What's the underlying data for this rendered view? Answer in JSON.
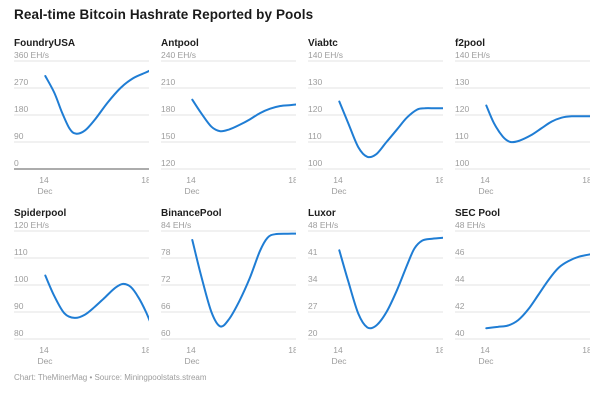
{
  "header": {
    "title": "Real-time Bitcoin Hashrate Reported by Pools"
  },
  "footer": {
    "credit": "Chart: TheMinerMag • Source: Miningpoolstats.stream"
  },
  "colors": {
    "line": "#1f7dd4",
    "grid": "#e3e3e3",
    "zero_axis": "#919191",
    "tick_label": "#9d9d9d",
    "title": "#1a1a1a",
    "subplot_title": "#1d1d1d"
  },
  "chart_data": {
    "type": "line",
    "title": "Real-time Bitcoin Hashrate Reported by Pools",
    "unit": "EH/s",
    "grid": "on",
    "legend": "none",
    "x_axis": {
      "xlim": [
        14,
        18.2
      ],
      "tick_days": [
        14,
        18
      ],
      "tick_labels": [
        "14",
        "18"
      ],
      "month_label": "Dec"
    },
    "charts": [
      {
        "name": "FoundryUSA",
        "unit_label": "360 EH/s",
        "ylim": [
          0,
          360
        ],
        "yticks": [
          270,
          180,
          90,
          0
        ],
        "zero_baseline": true,
        "points": [
          [
            14.05,
            310
          ],
          [
            14.4,
            255
          ],
          [
            14.7,
            190
          ],
          [
            15.0,
            135
          ],
          [
            15.25,
            118
          ],
          [
            15.6,
            128
          ],
          [
            16.0,
            165
          ],
          [
            16.5,
            222
          ],
          [
            17.0,
            270
          ],
          [
            17.5,
            303
          ],
          [
            18.0,
            322
          ],
          [
            18.2,
            330
          ]
        ]
      },
      {
        "name": "Antpool",
        "unit_label": "240 EH/s",
        "ylim": [
          120,
          240
        ],
        "yticks": [
          210,
          180,
          150,
          120
        ],
        "zero_baseline": false,
        "points": [
          [
            14.05,
            197
          ],
          [
            14.4,
            182
          ],
          [
            14.8,
            167
          ],
          [
            15.15,
            162
          ],
          [
            15.5,
            164
          ],
          [
            15.9,
            169
          ],
          [
            16.3,
            175
          ],
          [
            16.7,
            182
          ],
          [
            17.1,
            187
          ],
          [
            17.5,
            190
          ],
          [
            17.9,
            191
          ],
          [
            18.2,
            192
          ]
        ]
      },
      {
        "name": "Viabtc",
        "unit_label": "140 EH/s",
        "ylim": [
          100,
          140
        ],
        "yticks": [
          130,
          120,
          110,
          100
        ],
        "zero_baseline": false,
        "points": [
          [
            14.05,
            125
          ],
          [
            14.4,
            117
          ],
          [
            14.8,
            108
          ],
          [
            15.15,
            104.5
          ],
          [
            15.5,
            105.5
          ],
          [
            15.9,
            110
          ],
          [
            16.3,
            114.5
          ],
          [
            16.7,
            119
          ],
          [
            17.1,
            122
          ],
          [
            17.4,
            122.5
          ],
          [
            17.8,
            122.5
          ],
          [
            18.2,
            122.5
          ]
        ]
      },
      {
        "name": "f2pool",
        "unit_label": "140 EH/s",
        "ylim": [
          100,
          140
        ],
        "yticks": [
          130,
          120,
          110,
          100
        ],
        "zero_baseline": false,
        "points": [
          [
            14.05,
            123.5
          ],
          [
            14.35,
            117
          ],
          [
            14.7,
            112
          ],
          [
            15.0,
            110
          ],
          [
            15.35,
            110.5
          ],
          [
            15.8,
            112.5
          ],
          [
            16.2,
            115
          ],
          [
            16.6,
            117.5
          ],
          [
            17.0,
            119
          ],
          [
            17.4,
            119.5
          ],
          [
            18.2,
            119.5
          ]
        ]
      },
      {
        "name": "Spiderpool",
        "unit_label": "120 EH/s",
        "ylim": [
          80,
          120
        ],
        "yticks": [
          110,
          100,
          90,
          80
        ],
        "zero_baseline": false,
        "points": [
          [
            14.05,
            103.5
          ],
          [
            14.4,
            96
          ],
          [
            14.8,
            89.5
          ],
          [
            15.2,
            87.8
          ],
          [
            15.6,
            89
          ],
          [
            16.0,
            92
          ],
          [
            16.4,
            95.5
          ],
          [
            16.8,
            99
          ],
          [
            17.1,
            100.4
          ],
          [
            17.4,
            99.3
          ],
          [
            17.7,
            95.5
          ],
          [
            18.0,
            90
          ],
          [
            18.2,
            85.5
          ]
        ]
      },
      {
        "name": "BinancePool",
        "unit_label": "84 EH/s",
        "ylim": [
          60,
          84
        ],
        "yticks": [
          78,
          72,
          66,
          60
        ],
        "zero_baseline": false,
        "points": [
          [
            14.05,
            82
          ],
          [
            14.4,
            74
          ],
          [
            14.8,
            66
          ],
          [
            15.15,
            62.8
          ],
          [
            15.5,
            64.5
          ],
          [
            15.9,
            68.5
          ],
          [
            16.3,
            73.5
          ],
          [
            16.7,
            79.5
          ],
          [
            17.0,
            82.5
          ],
          [
            17.3,
            83.3
          ],
          [
            17.8,
            83.4
          ],
          [
            18.2,
            83.4
          ]
        ]
      },
      {
        "name": "Luxor",
        "unit_label": "48 EH/s",
        "ylim": [
          20,
          48
        ],
        "yticks": [
          41,
          34,
          27,
          20
        ],
        "zero_baseline": false,
        "points": [
          [
            14.05,
            43
          ],
          [
            14.4,
            35
          ],
          [
            14.8,
            26.5
          ],
          [
            15.15,
            23
          ],
          [
            15.5,
            23.5
          ],
          [
            15.9,
            27
          ],
          [
            16.3,
            32.5
          ],
          [
            16.7,
            39
          ],
          [
            17.0,
            43.5
          ],
          [
            17.3,
            45.5
          ],
          [
            17.7,
            46
          ],
          [
            18.2,
            46.3
          ]
        ]
      },
      {
        "name": "SEC Pool",
        "unit_label": "48 EH/s",
        "ylim": [
          40,
          48
        ],
        "yticks": [
          46,
          44,
          42,
          40
        ],
        "zero_baseline": false,
        "points": [
          [
            14.05,
            40.8
          ],
          [
            14.5,
            40.9
          ],
          [
            14.9,
            41.0
          ],
          [
            15.3,
            41.4
          ],
          [
            15.7,
            42.2
          ],
          [
            16.1,
            43.3
          ],
          [
            16.5,
            44.4
          ],
          [
            16.9,
            45.3
          ],
          [
            17.3,
            45.8
          ],
          [
            17.7,
            46.1
          ],
          [
            18.2,
            46.3
          ]
        ]
      }
    ]
  }
}
